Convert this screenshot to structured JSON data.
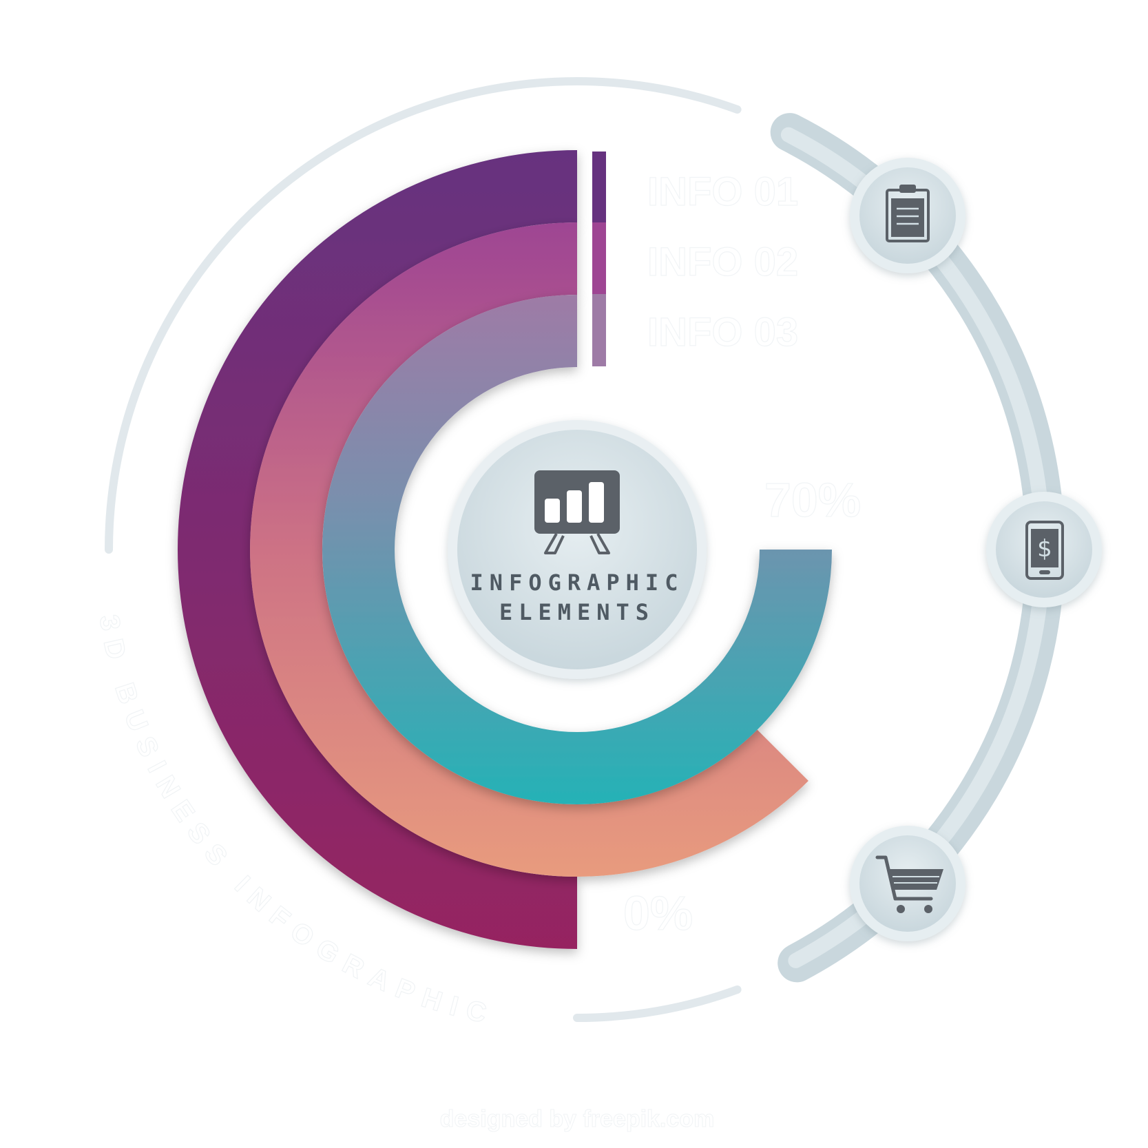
{
  "center": {
    "line1": "INFOGRAPHIC",
    "line2": "ELEMENTS",
    "icon": "presentation-chart-icon"
  },
  "info_labels": [
    "INFO 01",
    "INFO 02",
    "INFO 03"
  ],
  "percent_labels": {
    "high": "70%",
    "mid": "",
    "low": "0%"
  },
  "curved_caption": "3D BUSINESS INFOGRAPHIC",
  "credit": "designed by  freepik.com",
  "rings": [
    {
      "name": "info-01",
      "fraction": 0.5,
      "color_top": "#66327f",
      "color_bottom": "#962461"
    },
    {
      "name": "info-02",
      "fraction": 0.625,
      "color_top": "#9e4593",
      "color_bottom": "#e89b7e"
    },
    {
      "name": "info-03",
      "fraction": 0.75,
      "color_top": "#9e7ba6",
      "color_bottom": "#25b2b6"
    }
  ],
  "side_buttons": [
    {
      "name": "clipboard",
      "icon": "clipboard-icon"
    },
    {
      "name": "mobile-payment",
      "icon": "mobile-dollar-icon"
    },
    {
      "name": "shopping-cart",
      "icon": "shopping-cart-icon"
    }
  ],
  "colors": {
    "track": "#e1e8ec",
    "button_fill": "#d3e0e5",
    "icon": "#5b6168"
  }
}
